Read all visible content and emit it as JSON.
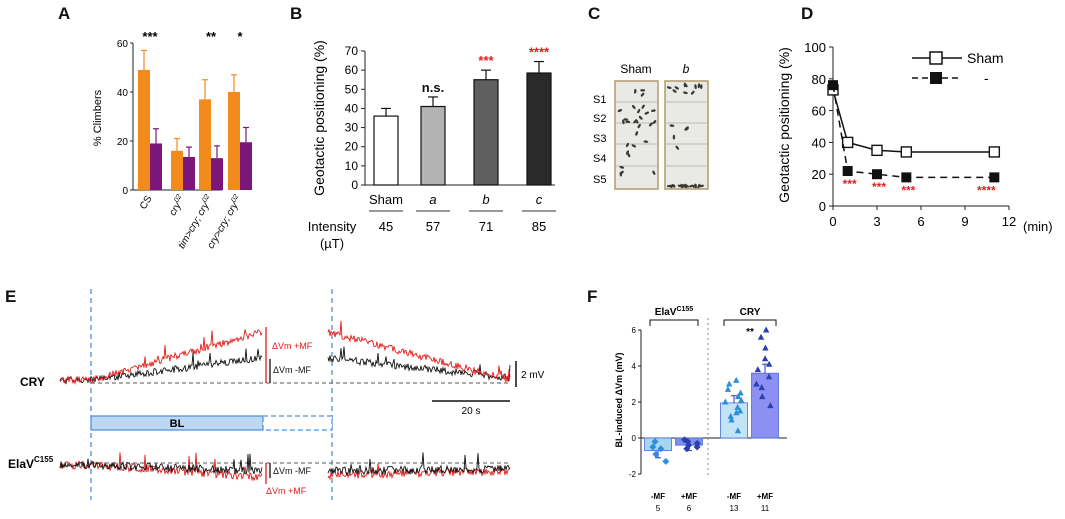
{
  "panels": {
    "A": {
      "letter": "A",
      "chart_data": {
        "type": "bar",
        "ylabel": "% Climbers",
        "ylim": [
          0,
          60
        ],
        "yticks": [
          "0",
          "20",
          "40",
          "60"
        ],
        "categories": [
          "CS",
          "cry02",
          "tim>cry; cry02",
          "cry>cry; cry02"
        ],
        "cat_labels": [
          {
            "main": "CS",
            "sup": ""
          },
          {
            "main": "cry",
            "sup": "02"
          },
          {
            "main": "tim>cry; cry",
            "sup": "02"
          },
          {
            "main": "cry>cry; cry",
            "sup": "02"
          }
        ],
        "series": [
          {
            "name": "orange",
            "color": "#f28a1c",
            "values": [
              49,
              16,
              37,
              40
            ],
            "errors": [
              8,
              5,
              8,
              7
            ]
          },
          {
            "name": "purple",
            "color": "#7b177b",
            "values": [
              19,
              13.5,
              13,
              19.5
            ],
            "errors": [
              6,
              4,
              5,
              6
            ]
          }
        ],
        "significance": [
          "***",
          "",
          "**",
          "*"
        ]
      }
    },
    "B": {
      "letter": "B",
      "chart_data": {
        "type": "bar",
        "ylabel": "Geotactic positioning (%)",
        "ylim": [
          0,
          70
        ],
        "yticks": [
          "0",
          "10",
          "20",
          "30",
          "40",
          "50",
          "60",
          "70"
        ],
        "categories": [
          "Sham",
          "a",
          "b",
          "c"
        ],
        "values": [
          36,
          41,
          55,
          58.5
        ],
        "errors": [
          4,
          5,
          5,
          6
        ],
        "colors": [
          "#ffffff",
          "#b3b3b3",
          "#5f5f5f",
          "#2a2a2a"
        ],
        "significance": [
          "",
          "n.s.",
          "***",
          "****"
        ],
        "sig_colors": [
          "#111111",
          "#111111",
          "#e02020",
          "#e02020"
        ],
        "intensity_label": "Intensity",
        "intensity_unit": "(µT)",
        "intensities": [
          "45",
          "57",
          "71",
          "85"
        ]
      }
    },
    "C": {
      "letter": "C",
      "labels": [
        "Sham",
        "b"
      ],
      "sections": [
        "S1",
        "S2",
        "S3",
        "S4",
        "S5"
      ]
    },
    "D": {
      "letter": "D",
      "chart_data": {
        "type": "line",
        "ylabel": "Geotactic positioning (%)",
        "xlabel": "(min)",
        "xlim": [
          0,
          12
        ],
        "ylim": [
          0,
          100
        ],
        "xticks": [
          "0",
          "3",
          "6",
          "9",
          "12"
        ],
        "yticks": [
          "0",
          "20",
          "40",
          "60",
          "80",
          "100"
        ],
        "series": [
          {
            "name": "Sham",
            "x": [
              0,
              1,
              3,
              5,
              11
            ],
            "y": [
              73,
              40,
              35,
              34,
              34
            ],
            "marker": "open-square",
            "line": "solid"
          },
          {
            "name": "-",
            "x": [
              0,
              1,
              3,
              5,
              11
            ],
            "y": [
              76,
              22,
              20,
              18,
              18
            ],
            "marker": "filled-square",
            "line": "dashed"
          }
        ],
        "legend": [
          "Sham",
          "-"
        ],
        "significance": [
          "***",
          "***",
          "***",
          "****"
        ]
      }
    },
    "E": {
      "letter": "E",
      "traces": [
        "CRY",
        "ElaV"
      ],
      "elav_sup": "C155",
      "label_dvm_mf_plus": "ΔVm +MF",
      "label_dvm_mf_minus": "ΔVm -MF",
      "scale_v": "2 mV",
      "scale_t": "20 s",
      "bl_label": "BL"
    },
    "F": {
      "letter": "F",
      "chart_data": {
        "type": "bar",
        "ylabel": "BL-induced ΔVm (mV)",
        "ylim": [
          -2,
          6
        ],
        "yticks": [
          "6",
          "4",
          "2",
          "0",
          "-2"
        ],
        "groups": [
          {
            "name": "ElaV",
            "sup": "C155",
            "sig": ""
          },
          {
            "name": "CRY",
            "sup": "",
            "sig": "**"
          }
        ],
        "categories": [
          "-MF",
          "+MF",
          "-MF",
          "+MF"
        ],
        "n": [
          "5",
          "6",
          "13",
          "11"
        ],
        "values": [
          -0.7,
          -0.4,
          1.95,
          3.6
        ],
        "errors": [
          0.4,
          0.3,
          0.4,
          0.5
        ],
        "colors": [
          "#a9d6ef",
          "#7f8ff0",
          "#c2e4f6",
          "#8e8ff2"
        ],
        "points": [
          [
            -0.2,
            -0.5,
            -1.3,
            -0.9,
            -0.6
          ],
          [
            -0.1,
            -0.3,
            -0.2,
            -0.6,
            -0.4,
            -0.5
          ],
          [
            0.4,
            1.0,
            1.4,
            1.7,
            2.0,
            2.1,
            2.3,
            2.5,
            2.7,
            3.0,
            1.2,
            1.5,
            3.2
          ],
          [
            1.8,
            2.3,
            2.8,
            3.4,
            3.8,
            4.1,
            4.4,
            5.0,
            5.6,
            6.0,
            3.0
          ]
        ]
      }
    }
  }
}
